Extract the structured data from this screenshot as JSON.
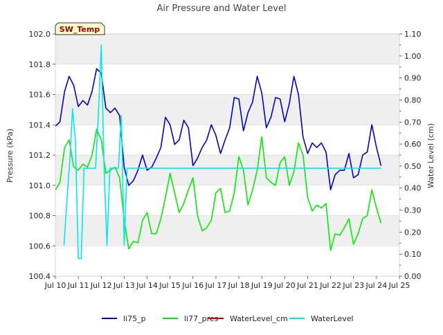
{
  "chart_data": {
    "type": "line",
    "title": "Air Pressure and Water Level",
    "annotation": "SW_Temp",
    "xlabel": "",
    "ylabel_left": "Pressure (kPa)",
    "ylabel_right": "Water Level (cm)",
    "x_axis": {
      "unit": "date",
      "xlim": [
        "Jul 10",
        "Jul 25"
      ],
      "tick_labels": [
        "Jul 10",
        "Jul 11",
        "Jul 12",
        "Jul 13",
        "Jul 14",
        "Jul 15",
        "Jul 16",
        "Jul 17",
        "Jul 18",
        "Jul 19",
        "Jul 20",
        "Jul 21",
        "Jul 22",
        "Jul 23",
        "Jul 24",
        "Jul 25"
      ]
    },
    "y_left": {
      "ylim": [
        100.4,
        102.0
      ],
      "tick_labels": [
        "100.4",
        "100.6",
        "100.8",
        "101.0",
        "101.2",
        "101.4",
        "101.6",
        "101.8",
        "102.0"
      ]
    },
    "y_right": {
      "ylim": [
        0.0,
        1.1
      ],
      "tick_labels": [
        "0.00",
        "0.10",
        "0.20",
        "0.30",
        "0.40",
        "0.50",
        "0.60",
        "0.70",
        "0.80",
        "0.90",
        "1.00",
        "1.10"
      ]
    },
    "grid": "horizontal bands",
    "legend_placement": "bottom",
    "series": [
      {
        "name": "li75_p",
        "axis": "left",
        "color": "#0000cc",
        "x": [
          "Jul 10 00:00",
          "Jul 10 04:48",
          "Jul 10 09:36",
          "Jul 10 14:24",
          "Jul 10 19:12",
          "Jul 11 00:00",
          "Jul 11 04:48",
          "Jul 11 09:36",
          "Jul 11 14:24",
          "Jul 11 19:12",
          "Jul 12 00:00",
          "Jul 12 04:48",
          "Jul 12 09:36",
          "Jul 12 14:24",
          "Jul 12 19:12",
          "Jul 13 00:00",
          "Jul 13 04:48",
          "Jul 13 09:36",
          "Jul 13 14:24",
          "Jul 13 19:12",
          "Jul 14 00:00",
          "Jul 14 04:48",
          "Jul 14 09:36",
          "Jul 14 14:24",
          "Jul 14 19:12",
          "Jul 15 00:00",
          "Jul 15 04:48",
          "Jul 15 09:36",
          "Jul 15 14:24",
          "Jul 15 19:12",
          "Jul 16 00:00",
          "Jul 16 04:48",
          "Jul 16 09:36",
          "Jul 16 14:24",
          "Jul 16 19:12",
          "Jul 17 00:00",
          "Jul 17 04:48",
          "Jul 17 09:36",
          "Jul 17 14:24",
          "Jul 17 19:12",
          "Jul 18 00:00",
          "Jul 18 04:48",
          "Jul 18 09:36",
          "Jul 18 14:24",
          "Jul 18 19:12",
          "Jul 19 00:00",
          "Jul 19 04:48",
          "Jul 19 09:36",
          "Jul 19 14:24",
          "Jul 19 19:12",
          "Jul 20 00:00",
          "Jul 20 04:48",
          "Jul 20 09:36",
          "Jul 20 14:24",
          "Jul 20 19:12",
          "Jul 21 00:00",
          "Jul 21 04:48",
          "Jul 21 09:36",
          "Jul 21 14:24",
          "Jul 21 19:12",
          "Jul 22 00:00",
          "Jul 22 04:48",
          "Jul 22 09:36",
          "Jul 22 14:24",
          "Jul 22 19:12",
          "Jul 23 00:00",
          "Jul 23 04:48",
          "Jul 23 09:36",
          "Jul 23 14:24",
          "Jul 23 19:12",
          "Jul 24 00:00",
          "Jul 24 04:48"
        ],
        "values": [
          101.39,
          101.42,
          101.62,
          101.72,
          101.66,
          101.52,
          101.56,
          101.53,
          101.62,
          101.77,
          101.74,
          101.51,
          101.48,
          101.51,
          101.46,
          101.12,
          101.0,
          101.03,
          101.1,
          101.2,
          101.1,
          101.12,
          101.18,
          101.25,
          101.45,
          101.4,
          101.27,
          101.3,
          101.43,
          101.38,
          101.13,
          101.18,
          101.25,
          101.3,
          101.4,
          101.33,
          101.21,
          101.3,
          101.38,
          101.58,
          101.57,
          101.36,
          101.48,
          101.55,
          101.72,
          101.61,
          101.38,
          101.45,
          101.58,
          101.57,
          101.42,
          101.54,
          101.72,
          101.6,
          101.32,
          101.21,
          101.28,
          101.25,
          101.28,
          101.22,
          100.97,
          101.07,
          101.1,
          101.1,
          101.21,
          101.05,
          101.07,
          101.2,
          101.22,
          101.4,
          101.25,
          101.13
        ]
      },
      {
        "name": "li77_pres",
        "axis": "left",
        "color": "#00ee00",
        "x": [
          "Jul 10 00:00",
          "Jul 10 04:48",
          "Jul 10 09:36",
          "Jul 10 14:24",
          "Jul 10 19:12",
          "Jul 11 00:00",
          "Jul 11 04:48",
          "Jul 11 09:36",
          "Jul 11 14:24",
          "Jul 11 19:12",
          "Jul 12 00:00",
          "Jul 12 04:48",
          "Jul 12 09:36",
          "Jul 12 14:24",
          "Jul 12 19:12",
          "Jul 13 00:00",
          "Jul 13 04:48",
          "Jul 13 09:36",
          "Jul 13 14:24",
          "Jul 13 19:12",
          "Jul 14 00:00",
          "Jul 14 04:48",
          "Jul 14 09:36",
          "Jul 14 14:24",
          "Jul 14 19:12",
          "Jul 15 00:00",
          "Jul 15 04:48",
          "Jul 15 09:36",
          "Jul 15 14:24",
          "Jul 15 19:12",
          "Jul 16 00:00",
          "Jul 16 04:48",
          "Jul 16 09:36",
          "Jul 16 14:24",
          "Jul 16 19:12",
          "Jul 17 00:00",
          "Jul 17 04:48",
          "Jul 17 09:36",
          "Jul 17 14:24",
          "Jul 17 19:12",
          "Jul 18 00:00",
          "Jul 18 04:48",
          "Jul 18 09:36",
          "Jul 18 14:24",
          "Jul 18 19:12",
          "Jul 19 00:00",
          "Jul 19 04:48",
          "Jul 19 09:36",
          "Jul 19 14:24",
          "Jul 19 19:12",
          "Jul 20 00:00",
          "Jul 20 04:48",
          "Jul 20 09:36",
          "Jul 20 14:24",
          "Jul 20 19:12",
          "Jul 21 00:00",
          "Jul 21 04:48",
          "Jul 21 09:36",
          "Jul 21 14:24",
          "Jul 21 19:12",
          "Jul 22 00:00",
          "Jul 22 04:48",
          "Jul 22 09:36",
          "Jul 22 14:24",
          "Jul 22 19:12",
          "Jul 23 00:00",
          "Jul 23 04:48",
          "Jul 23 09:36",
          "Jul 23 14:24",
          "Jul 23 19:12",
          "Jul 24 00:00",
          "Jul 24 04:48"
        ],
        "values": [
          100.97,
          101.02,
          101.25,
          101.3,
          101.12,
          101.1,
          101.14,
          101.12,
          101.2,
          101.37,
          101.3,
          101.08,
          101.1,
          101.12,
          101.05,
          100.77,
          100.58,
          100.63,
          100.62,
          100.77,
          100.82,
          100.68,
          100.68,
          100.78,
          100.92,
          101.08,
          100.95,
          100.82,
          100.88,
          100.97,
          101.05,
          100.8,
          100.7,
          100.72,
          100.77,
          100.95,
          100.98,
          100.82,
          100.83,
          100.95,
          101.19,
          101.1,
          100.87,
          100.97,
          101.1,
          101.32,
          101.05,
          101.02,
          101.0,
          101.15,
          101.19,
          101.0,
          101.09,
          101.28,
          101.2,
          100.92,
          100.83,
          100.87,
          100.85,
          100.88,
          100.57,
          100.68,
          100.67,
          100.72,
          100.78,
          100.61,
          100.68,
          100.78,
          100.8,
          100.97,
          100.85,
          100.75
        ]
      },
      {
        "name": "WaterLevel_cm",
        "axis": "right",
        "color": "#cc0000",
        "x": [],
        "values": []
      },
      {
        "name": "WaterLevel",
        "axis": "right",
        "color": "#00e8ee",
        "x": [
          "Jul 10 09:00",
          "Jul 10 12:00",
          "Jul 10 15:00",
          "Jul 10 18:00",
          "Jul 10 21:00",
          "Jul 11 00:00",
          "Jul 11 03:00",
          "Jul 11 06:00",
          "Jul 11 09:00",
          "Jul 11 12:00",
          "Jul 11 15:00",
          "Jul 11 18:00",
          "Jul 11 21:00",
          "Jul 12 00:00",
          "Jul 12 03:00",
          "Jul 12 06:00",
          "Jul 12 09:00",
          "Jul 12 12:00",
          "Jul 12 15:00",
          "Jul 12 18:00",
          "Jul 12 21:00",
          "Jul 13 00:00",
          "Jul 13 03:00",
          "Jul 24 00:00",
          "Jul 24 04:48"
        ],
        "values": [
          0.14,
          0.34,
          0.52,
          0.76,
          0.61,
          0.08,
          0.08,
          0.49,
          0.49,
          0.49,
          0.49,
          0.49,
          0.73,
          1.05,
          0.49,
          0.14,
          0.49,
          0.49,
          0.49,
          0.49,
          0.73,
          0.14,
          0.49,
          0.49,
          0.49
        ]
      }
    ]
  }
}
